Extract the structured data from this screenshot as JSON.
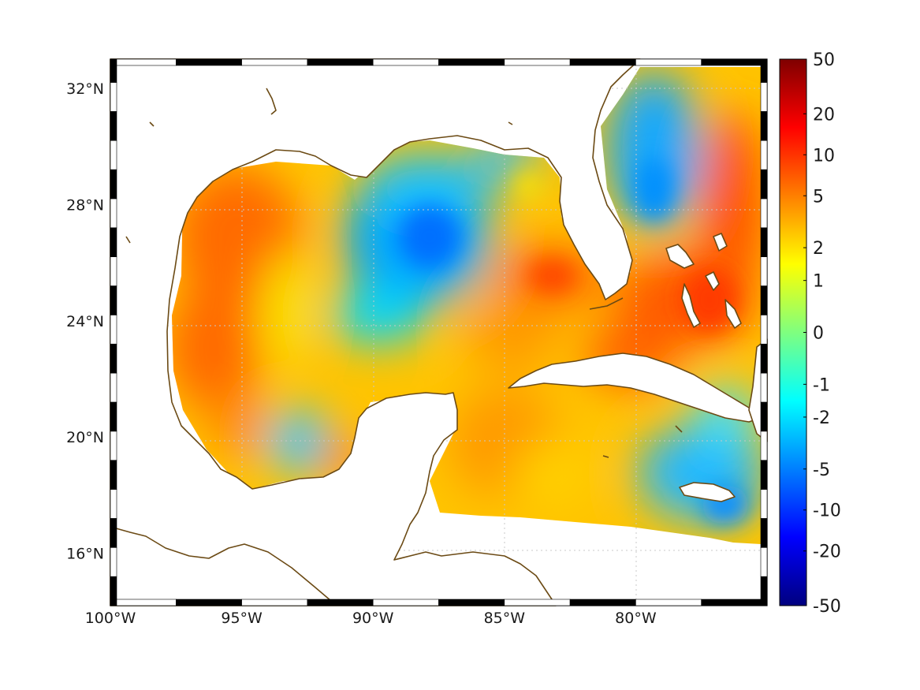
{
  "map": {
    "region": "Gulf of Mexico and Caribbean",
    "lon_range": [
      -100,
      -75
    ],
    "lat_range": [
      14.2,
      33
    ],
    "lon_ticks": [
      {
        "value": -100,
        "label": "100°W"
      },
      {
        "value": -95,
        "label": "95°W"
      },
      {
        "value": -90,
        "label": "90°W"
      },
      {
        "value": -85,
        "label": "85°W"
      },
      {
        "value": -80,
        "label": "80°W"
      }
    ],
    "lat_ticks": [
      {
        "value": 16,
        "label": "16°N"
      },
      {
        "value": 20,
        "label": "20°N"
      },
      {
        "value": 24,
        "label": "24°N"
      },
      {
        "value": 28,
        "label": "28°N"
      },
      {
        "value": 32,
        "label": "32°N"
      }
    ],
    "grid": true,
    "coastline_color": "#6b4a14"
  },
  "colorbar": {
    "ticks": [
      "50",
      "20",
      "10",
      "5",
      "2",
      "1",
      "0",
      "-1",
      "-2",
      "-5",
      "-10",
      "-20",
      "-50"
    ],
    "colormap": "jet",
    "colors": [
      "#00007f",
      "#0000ff",
      "#007fff",
      "#00ffff",
      "#7fff7f",
      "#ffff00",
      "#ff7f00",
      "#ff0000",
      "#7f0000"
    ],
    "position": "right"
  },
  "chart_data": {
    "type": "heatmap",
    "title": "",
    "xlabel": "",
    "ylabel": "",
    "color_scale": "symmetric log",
    "vrange": [
      -50,
      50
    ],
    "note_regions": [
      {
        "lon": -97.5,
        "lat": 26.0,
        "value": 6
      },
      {
        "lon": -88.0,
        "lat": 27.0,
        "value": -5
      },
      {
        "lon": -84.0,
        "lat": 25.5,
        "value": 7
      },
      {
        "lon": -79.0,
        "lat": 29.0,
        "value": -4
      },
      {
        "lon": -77.0,
        "lat": 26.0,
        "value": 12
      },
      {
        "lon": -80.0,
        "lat": 23.5,
        "value": 12
      },
      {
        "lon": -78.0,
        "lat": 18.0,
        "value": -3
      },
      {
        "lon": -93.0,
        "lat": 20.5,
        "value": -2
      }
    ]
  }
}
